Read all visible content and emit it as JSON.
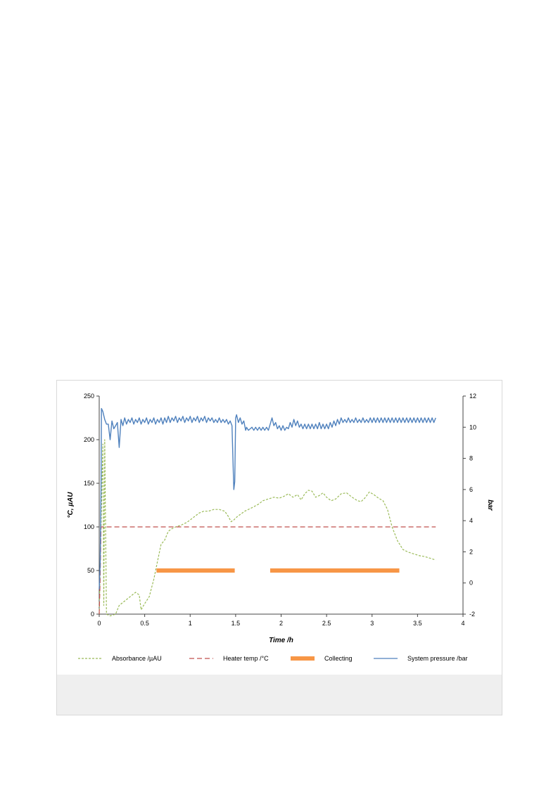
{
  "chart_data": {
    "type": "line",
    "xlabel": "Time /h",
    "ylabel_left": "°C, µAU",
    "ylabel_right": "bar",
    "xlim": [
      0,
      4
    ],
    "ylim_left": [
      0,
      250
    ],
    "ylim_right": [
      -2,
      12
    ],
    "x_ticks": [
      "0",
      "0.5",
      "1",
      "1.5",
      "2",
      "2.5",
      "3",
      "3.5",
      "4"
    ],
    "y_left_ticks": [
      "0",
      "50",
      "100",
      "150",
      "200",
      "250"
    ],
    "y_right_ticks": [
      "-2",
      "0",
      "2",
      "4",
      "6",
      "8",
      "10",
      "12"
    ],
    "grid": false,
    "legend_position": "bottom",
    "series": [
      {
        "name": "Absorbance /µAU",
        "axis": "left",
        "style": "dashed",
        "color": "#9bbb59",
        "points": [
          [
            0,
            0
          ],
          [
            0.02,
            100
          ],
          [
            0.04,
            195
          ],
          [
            0.05,
            10
          ],
          [
            0.06,
            200
          ],
          [
            0.08,
            0
          ],
          [
            0.12,
            -2
          ],
          [
            0.18,
            0
          ],
          [
            0.22,
            10
          ],
          [
            0.28,
            15
          ],
          [
            0.34,
            20
          ],
          [
            0.4,
            25
          ],
          [
            0.44,
            22
          ],
          [
            0.46,
            5
          ],
          [
            0.5,
            12
          ],
          [
            0.55,
            20
          ],
          [
            0.6,
            40
          ],
          [
            0.64,
            60
          ],
          [
            0.68,
            80
          ],
          [
            0.72,
            85
          ],
          [
            0.76,
            95
          ],
          [
            0.8,
            98
          ],
          [
            0.84,
            100
          ],
          [
            0.9,
            102
          ],
          [
            0.96,
            105
          ],
          [
            1.0,
            108
          ],
          [
            1.05,
            112
          ],
          [
            1.1,
            116
          ],
          [
            1.15,
            118
          ],
          [
            1.2,
            118
          ],
          [
            1.26,
            120
          ],
          [
            1.32,
            120
          ],
          [
            1.38,
            118
          ],
          [
            1.42,
            112
          ],
          [
            1.45,
            106
          ],
          [
            1.48,
            108
          ],
          [
            1.52,
            112
          ],
          [
            1.6,
            118
          ],
          [
            1.68,
            122
          ],
          [
            1.75,
            126
          ],
          [
            1.8,
            130
          ],
          [
            1.86,
            132
          ],
          [
            1.92,
            134
          ],
          [
            1.98,
            133
          ],
          [
            2.03,
            135
          ],
          [
            2.08,
            138
          ],
          [
            2.13,
            134
          ],
          [
            2.18,
            137
          ],
          [
            2.22,
            131
          ],
          [
            2.26,
            138
          ],
          [
            2.3,
            142
          ],
          [
            2.34,
            141
          ],
          [
            2.38,
            134
          ],
          [
            2.42,
            136
          ],
          [
            2.46,
            139
          ],
          [
            2.5,
            134
          ],
          [
            2.55,
            130
          ],
          [
            2.6,
            132
          ],
          [
            2.66,
            138
          ],
          [
            2.72,
            139
          ],
          [
            2.78,
            134
          ],
          [
            2.84,
            130
          ],
          [
            2.88,
            129
          ],
          [
            2.92,
            133
          ],
          [
            2.97,
            140
          ],
          [
            3.02,
            137
          ],
          [
            3.07,
            133
          ],
          [
            3.12,
            130
          ],
          [
            3.17,
            120
          ],
          [
            3.22,
            100
          ],
          [
            3.28,
            84
          ],
          [
            3.34,
            74
          ],
          [
            3.4,
            71
          ],
          [
            3.46,
            69
          ],
          [
            3.52,
            67
          ],
          [
            3.58,
            66
          ],
          [
            3.64,
            64
          ],
          [
            3.7,
            62
          ]
        ]
      },
      {
        "name": "Heater temp /°C",
        "axis": "left",
        "style": "dashed",
        "color": "#c0504d",
        "points": [
          [
            0,
            0
          ],
          [
            0.01,
            40
          ],
          [
            0.02,
            100
          ],
          [
            0.04,
            100
          ],
          [
            3.7,
            100
          ]
        ]
      },
      {
        "name": "Collecting",
        "axis": "left",
        "style": "bar",
        "color": "#f79646",
        "segments": [
          [
            0.63,
            1.49,
            50
          ],
          [
            1.88,
            3.3,
            50
          ]
        ]
      },
      {
        "name": "System pressure /bar",
        "axis": "right",
        "style": "solid",
        "color": "#4f81bd",
        "points": [
          [
            0,
            -0.4
          ],
          [
            0.01,
            1.2
          ],
          [
            0.02,
            6
          ],
          [
            0.025,
            11.2
          ],
          [
            0.04,
            11.0
          ],
          [
            0.06,
            10.5
          ],
          [
            0.08,
            10.2
          ],
          [
            0.1,
            10.2
          ],
          [
            0.12,
            9.2
          ],
          [
            0.14,
            10.4
          ],
          [
            0.16,
            9.9
          ],
          [
            0.18,
            10.1
          ],
          [
            0.2,
            10.3
          ],
          [
            0.22,
            8.7
          ],
          [
            0.24,
            10.5
          ],
          [
            0.26,
            10.1
          ],
          [
            0.28,
            10.6
          ],
          [
            0.3,
            10.2
          ],
          [
            0.32,
            10.5
          ],
          [
            0.34,
            10.3
          ],
          [
            0.36,
            10.6
          ],
          [
            0.38,
            10.2
          ],
          [
            0.4,
            10.5
          ],
          [
            0.42,
            10.3
          ],
          [
            0.44,
            10.6
          ],
          [
            0.46,
            10.2
          ],
          [
            0.48,
            10.5
          ],
          [
            0.5,
            10.3
          ],
          [
            0.52,
            10.6
          ],
          [
            0.54,
            10.2
          ],
          [
            0.56,
            10.5
          ],
          [
            0.58,
            10.3
          ],
          [
            0.6,
            10.6
          ],
          [
            0.62,
            10.2
          ],
          [
            0.64,
            10.5
          ],
          [
            0.66,
            10.3
          ],
          [
            0.68,
            10.6
          ],
          [
            0.7,
            10.2
          ],
          [
            0.72,
            10.6
          ],
          [
            0.74,
            10.3
          ],
          [
            0.76,
            10.7
          ],
          [
            0.78,
            10.3
          ],
          [
            0.8,
            10.6
          ],
          [
            0.82,
            10.4
          ],
          [
            0.84,
            10.7
          ],
          [
            0.86,
            10.3
          ],
          [
            0.88,
            10.6
          ],
          [
            0.9,
            10.4
          ],
          [
            0.92,
            10.7
          ],
          [
            0.94,
            10.3
          ],
          [
            0.96,
            10.6
          ],
          [
            0.98,
            10.4
          ],
          [
            1.0,
            10.7
          ],
          [
            1.02,
            10.3
          ],
          [
            1.04,
            10.6
          ],
          [
            1.06,
            10.4
          ],
          [
            1.08,
            10.7
          ],
          [
            1.1,
            10.3
          ],
          [
            1.12,
            10.6
          ],
          [
            1.14,
            10.4
          ],
          [
            1.16,
            10.7
          ],
          [
            1.18,
            10.3
          ],
          [
            1.2,
            10.6
          ],
          [
            1.22,
            10.4
          ],
          [
            1.24,
            10.6
          ],
          [
            1.26,
            10.3
          ],
          [
            1.28,
            10.5
          ],
          [
            1.3,
            10.3
          ],
          [
            1.32,
            10.6
          ],
          [
            1.34,
            10.3
          ],
          [
            1.36,
            10.5
          ],
          [
            1.38,
            10.3
          ],
          [
            1.4,
            10.5
          ],
          [
            1.42,
            10.2
          ],
          [
            1.44,
            10.4
          ],
          [
            1.46,
            10.1
          ],
          [
            1.47,
            8.0
          ],
          [
            1.48,
            6.0
          ],
          [
            1.49,
            6.5
          ],
          [
            1.5,
            10.6
          ],
          [
            1.51,
            10.8
          ],
          [
            1.53,
            10.3
          ],
          [
            1.55,
            10.6
          ],
          [
            1.57,
            10.2
          ],
          [
            1.59,
            10.4
          ],
          [
            1.61,
            9.8
          ],
          [
            1.62,
            10.0
          ],
          [
            1.64,
            9.8
          ],
          [
            1.66,
            9.9
          ],
          [
            1.68,
            10.0
          ],
          [
            1.7,
            9.8
          ],
          [
            1.72,
            10.0
          ],
          [
            1.74,
            9.8
          ],
          [
            1.76,
            10.0
          ],
          [
            1.78,
            9.8
          ],
          [
            1.8,
            10.0
          ],
          [
            1.82,
            9.8
          ],
          [
            1.84,
            10.0
          ],
          [
            1.86,
            9.8
          ],
          [
            1.88,
            10.2
          ],
          [
            1.9,
            10.6
          ],
          [
            1.92,
            10.1
          ],
          [
            1.94,
            10.3
          ],
          [
            1.96,
            9.9
          ],
          [
            1.98,
            10.1
          ],
          [
            2.0,
            9.8
          ],
          [
            2.02,
            10.1
          ],
          [
            2.04,
            9.8
          ],
          [
            2.06,
            10.0
          ],
          [
            2.08,
            9.9
          ],
          [
            2.1,
            10.3
          ],
          [
            2.12,
            10.0
          ],
          [
            2.14,
            10.5
          ],
          [
            2.16,
            10.1
          ],
          [
            2.18,
            10.4
          ],
          [
            2.2,
            10.0
          ],
          [
            2.22,
            10.2
          ],
          [
            2.24,
            9.9
          ],
          [
            2.26,
            10.2
          ],
          [
            2.28,
            9.9
          ],
          [
            2.3,
            10.2
          ],
          [
            2.32,
            9.9
          ],
          [
            2.34,
            10.2
          ],
          [
            2.36,
            9.9
          ],
          [
            2.38,
            10.2
          ],
          [
            2.4,
            9.9
          ],
          [
            2.42,
            10.3
          ],
          [
            2.44,
            9.9
          ],
          [
            2.46,
            10.2
          ],
          [
            2.48,
            9.9
          ],
          [
            2.5,
            10.2
          ],
          [
            2.52,
            9.9
          ],
          [
            2.54,
            10.3
          ],
          [
            2.56,
            10.0
          ],
          [
            2.58,
            10.4
          ],
          [
            2.6,
            10.1
          ],
          [
            2.62,
            10.5
          ],
          [
            2.64,
            10.2
          ],
          [
            2.66,
            10.6
          ],
          [
            2.68,
            10.3
          ],
          [
            2.7,
            10.5
          ],
          [
            2.72,
            10.3
          ],
          [
            2.74,
            10.6
          ],
          [
            2.76,
            10.3
          ],
          [
            2.78,
            10.5
          ],
          [
            2.8,
            10.3
          ],
          [
            2.82,
            10.6
          ],
          [
            2.84,
            10.3
          ],
          [
            2.86,
            10.5
          ],
          [
            2.88,
            10.3
          ],
          [
            2.9,
            10.6
          ],
          [
            2.92,
            10.3
          ],
          [
            2.94,
            10.5
          ],
          [
            2.96,
            10.3
          ],
          [
            2.98,
            10.6
          ],
          [
            3.0,
            10.3
          ],
          [
            3.02,
            10.6
          ],
          [
            3.04,
            10.3
          ],
          [
            3.06,
            10.6
          ],
          [
            3.08,
            10.3
          ],
          [
            3.1,
            10.6
          ],
          [
            3.12,
            10.3
          ],
          [
            3.14,
            10.6
          ],
          [
            3.16,
            10.3
          ],
          [
            3.18,
            10.6
          ],
          [
            3.2,
            10.3
          ],
          [
            3.22,
            10.6
          ],
          [
            3.24,
            10.3
          ],
          [
            3.26,
            10.6
          ],
          [
            3.28,
            10.3
          ],
          [
            3.3,
            10.6
          ],
          [
            3.32,
            10.3
          ],
          [
            3.34,
            10.6
          ],
          [
            3.36,
            10.3
          ],
          [
            3.38,
            10.6
          ],
          [
            3.4,
            10.3
          ],
          [
            3.42,
            10.6
          ],
          [
            3.44,
            10.3
          ],
          [
            3.46,
            10.6
          ],
          [
            3.48,
            10.3
          ],
          [
            3.5,
            10.6
          ],
          [
            3.52,
            10.3
          ],
          [
            3.54,
            10.6
          ],
          [
            3.56,
            10.3
          ],
          [
            3.58,
            10.6
          ],
          [
            3.6,
            10.3
          ],
          [
            3.62,
            10.6
          ],
          [
            3.64,
            10.3
          ],
          [
            3.66,
            10.6
          ],
          [
            3.68,
            10.3
          ],
          [
            3.7,
            10.6
          ]
        ]
      }
    ]
  }
}
